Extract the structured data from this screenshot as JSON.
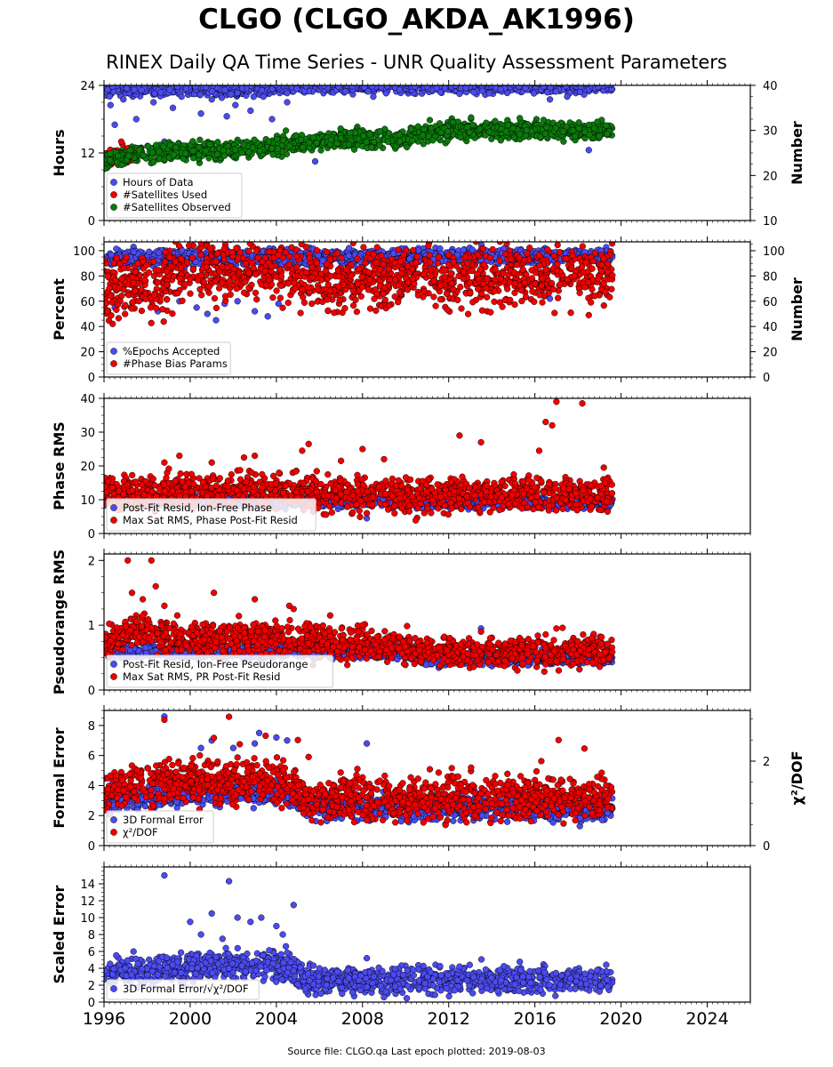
{
  "title": "CLGO (CLGO_AKDA_AK1996)",
  "subtitle": "RINEX Daily QA Time Series - UNR Quality Assessment Parameters",
  "footer": "Source file: CLGO.qa Last epoch plotted: 2019-08-03",
  "colors": {
    "blue": "#4b4bf0",
    "red": "#f00000",
    "green": "#0a7a0a",
    "edge": "#000000"
  },
  "x_axis": {
    "range": [
      1996.0,
      2026.0
    ],
    "ticks": [
      1996,
      2000,
      2004,
      2008,
      2012,
      2016,
      2020,
      2024
    ],
    "tick_labels": [
      "1996",
      "2000",
      "2004",
      "2008",
      "2012",
      "2016",
      "2020",
      "2024"
    ]
  },
  "chart_data": [
    {
      "type": "scatter",
      "ylabel": "Hours",
      "ylabel_right": "Number",
      "ylim": [
        0,
        24
      ],
      "yticks": [
        0,
        12,
        24
      ],
      "ytick_labels": [
        "0",
        "12",
        "24"
      ],
      "ylim_right": [
        10,
        40
      ],
      "yticks_right": [
        10,
        20,
        30,
        40
      ],
      "ytick_labels_right": [
        "10",
        "20",
        "30",
        "40"
      ],
      "legend_position": "lower-left",
      "series": [
        {
          "name": "Hours of Data",
          "color": "blue",
          "axis": "left",
          "trend": [
            [
              1996.0,
              23.5
            ],
            [
              1999.0,
              23.2
            ],
            [
              2003.0,
              23.5
            ],
            [
              2004.3,
              23.8
            ],
            [
              2019.6,
              23.9
            ]
          ],
          "spread": 0.6,
          "outliers": [
            [
              1996.3,
              20.5
            ],
            [
              1996.5,
              17.0
            ],
            [
              1996.9,
              21.5
            ],
            [
              1997.5,
              18.0
            ],
            [
              1998.3,
              21.0
            ],
            [
              1998.8,
              14.0
            ],
            [
              1999.2,
              20.0
            ],
            [
              1999.6,
              22.0
            ],
            [
              2000.5,
              19.0
            ],
            [
              2001.0,
              21.5
            ],
            [
              2001.7,
              18.5
            ],
            [
              2002.1,
              20.5
            ],
            [
              2002.8,
              19.5
            ],
            [
              2003.4,
              22.0
            ],
            [
              2003.8,
              18.0
            ],
            [
              2004.5,
              21.0
            ],
            [
              2005.8,
              10.5
            ],
            [
              2008.5,
              22.0
            ],
            [
              2012.5,
              22.5
            ],
            [
              2016.7,
              21.5
            ],
            [
              2017.5,
              22.0
            ],
            [
              2018.5,
              12.5
            ]
          ]
        },
        {
          "name": "#Satellites Used",
          "color": "red",
          "axis": "right",
          "trend": [
            [
              1996.0,
              24.0
            ],
            [
              1996.8,
              25.0
            ],
            [
              1997.3,
              24.5
            ]
          ],
          "spread": 0.8,
          "outliers": [
            [
              1996.8,
              27.5
            ],
            [
              1997.1,
              26.0
            ]
          ]
        },
        {
          "name": "#Satellites Observed",
          "color": "green",
          "axis": "right",
          "trend": [
            [
              1996.0,
              23.5
            ],
            [
              1998.0,
              25.0
            ],
            [
              2001.0,
              25.5
            ],
            [
              2003.0,
              25.8
            ],
            [
              2004.5,
              27.0
            ],
            [
              2006.0,
              27.8
            ],
            [
              2008.0,
              28.0
            ],
            [
              2010.0,
              28.3
            ],
            [
              2011.0,
              29.5
            ],
            [
              2013.0,
              30.0
            ],
            [
              2015.0,
              30.0
            ],
            [
              2019.6,
              30.0
            ]
          ],
          "spread": 1.0
        }
      ]
    },
    {
      "type": "scatter",
      "ylabel": "Percent",
      "ylabel_right": "Number",
      "ylim": [
        0,
        107
      ],
      "yticks": [
        0,
        20,
        40,
        60,
        80,
        100
      ],
      "ytick_labels": [
        "0",
        "20",
        "40",
        "60",
        "80",
        "100"
      ],
      "ylim_right": [
        0,
        107
      ],
      "yticks_right": [
        0,
        20,
        40,
        60,
        80,
        100
      ],
      "ytick_labels_right": [
        "0",
        "20",
        "40",
        "60",
        "80",
        "100"
      ],
      "legend_position": "lower-left",
      "series": [
        {
          "name": "%Epochs Accepted",
          "color": "blue",
          "axis": "left",
          "trend": [
            [
              1996.0,
              94.0
            ],
            [
              2005.0,
              95.0
            ],
            [
              2019.6,
              96.0
            ]
          ],
          "spread": 3.0,
          "outliers": [
            [
              1996.5,
              55.0
            ],
            [
              1997.8,
              62.0
            ],
            [
              1998.5,
              52.0
            ],
            [
              1999.5,
              60.0
            ],
            [
              2000.3,
              55.0
            ],
            [
              2000.8,
              50.0
            ],
            [
              2001.2,
              45.0
            ],
            [
              2001.6,
              58.0
            ],
            [
              2002.2,
              60.0
            ],
            [
              2003.0,
              52.0
            ],
            [
              2003.6,
              48.0
            ],
            [
              2004.1,
              58.0
            ],
            [
              2016.7,
              62.0
            ]
          ]
        },
        {
          "name": "#Phase Bias Params",
          "color": "red",
          "axis": "right",
          "trend": [
            [
              1996.0,
              72.0
            ],
            [
              1998.8,
              72.0
            ],
            [
              1999.3,
              85.0
            ],
            [
              2004.5,
              85.0
            ],
            [
              2005.5,
              78.0
            ],
            [
              2019.6,
              80.0
            ]
          ],
          "spread": 12.0,
          "outliers": [
            [
              1996.4,
              42.0
            ],
            [
              2018.5,
              49.0
            ]
          ]
        }
      ]
    },
    {
      "type": "scatter",
      "ylabel": "Phase RMS",
      "ylim": [
        0,
        40
      ],
      "yticks": [
        0,
        10,
        20,
        30,
        40
      ],
      "ytick_labels": [
        "0",
        "10",
        "20",
        "30",
        "40"
      ],
      "legend_position": "lower-left",
      "series": [
        {
          "name": "Post-Fit Resid, Ion-Free Phase",
          "color": "blue",
          "trend": [
            [
              1996.0,
              9.5
            ],
            [
              2005.0,
              9.5
            ],
            [
              2019.6,
              9.0
            ]
          ],
          "spread": 0.8,
          "outliers": [
            [
              2008.2,
              4.5
            ]
          ]
        },
        {
          "name": "Max Sat RMS, Phase Post-Fit Resid",
          "color": "red",
          "trend": [
            [
              1996.0,
              12.0
            ],
            [
              2002.0,
              13.0
            ],
            [
              2005.0,
              13.0
            ],
            [
              2006.0,
              11.5
            ],
            [
              2019.6,
              11.5
            ]
          ],
          "spread": 2.5,
          "outliers": [
            [
              1998.8,
              21.0
            ],
            [
              1999.5,
              23.0
            ],
            [
              2001.0,
              21.0
            ],
            [
              2002.5,
              22.5
            ],
            [
              2003.0,
              23.0
            ],
            [
              2005.2,
              24.5
            ],
            [
              2005.5,
              26.5
            ],
            [
              2007.0,
              21.5
            ],
            [
              2008.0,
              25.0
            ],
            [
              2008.2,
              6.0
            ],
            [
              2009.0,
              22.0
            ],
            [
              2012.5,
              29.0
            ],
            [
              2013.5,
              27.0
            ],
            [
              2016.2,
              24.5
            ],
            [
              2016.5,
              33.0
            ],
            [
              2016.8,
              32.0
            ],
            [
              2017.0,
              39.0
            ],
            [
              2018.2,
              38.5
            ],
            [
              2019.2,
              19.5
            ]
          ]
        }
      ]
    },
    {
      "type": "scatter",
      "ylabel": "Pseudorange RMS",
      "ylim": [
        0,
        2.1
      ],
      "yticks": [
        0,
        1,
        2
      ],
      "ytick_labels": [
        "0",
        "1",
        "2"
      ],
      "legend_position": "lower-left",
      "series": [
        {
          "name": "Post-Fit Resid, Ion-Free Pseudorange",
          "color": "blue",
          "trend": [
            [
              1996.0,
              0.6
            ],
            [
              2010.5,
              0.58
            ],
            [
              2010.8,
              0.48
            ],
            [
              2019.6,
              0.5
            ]
          ],
          "spread": 0.05,
          "outliers": [
            [
              2013.5,
              0.95
            ]
          ]
        },
        {
          "name": "Max Sat RMS, PR Post-Fit Resid",
          "color": "red",
          "trend": [
            [
              1996.0,
              0.7
            ],
            [
              1997.5,
              0.95
            ],
            [
              1998.5,
              0.85
            ],
            [
              1999.5,
              0.8
            ],
            [
              2004.5,
              0.8
            ],
            [
              2008.0,
              0.7
            ],
            [
              2010.5,
              0.65
            ],
            [
              2010.8,
              0.6
            ],
            [
              2019.6,
              0.6
            ]
          ],
          "spread": 0.12,
          "outliers": [
            [
              1997.1,
              2.0
            ],
            [
              1997.3,
              1.5
            ],
            [
              1997.8,
              1.4
            ],
            [
              1998.2,
              2.0
            ],
            [
              1998.4,
              1.6
            ],
            [
              1998.8,
              1.3
            ],
            [
              1999.4,
              1.15
            ],
            [
              2001.1,
              1.5
            ],
            [
              2003.0,
              1.4
            ],
            [
              2004.6,
              1.3
            ],
            [
              2004.8,
              1.25
            ],
            [
              2006.5,
              1.15
            ],
            [
              2008.0,
              1.0
            ],
            [
              2013.5,
              0.9
            ],
            [
              2017.0,
              0.95
            ]
          ]
        }
      ]
    },
    {
      "type": "scatter",
      "ylabel": "Formal Error",
      "ylabel_right": "χ²/DOF",
      "ylim": [
        0,
        9
      ],
      "yticks": [
        0,
        2,
        4,
        6,
        8
      ],
      "ytick_labels": [
        "0",
        "2",
        "4",
        "6",
        "8"
      ],
      "ylim_right": [
        0,
        3.2
      ],
      "yticks_right": [
        0,
        2
      ],
      "ytick_labels_right": [
        "0",
        "2"
      ],
      "legend_position": "lower-left",
      "series": [
        {
          "name": "3D Formal Error",
          "color": "blue",
          "axis": "left",
          "trend": [
            [
              1996.0,
              3.0
            ],
            [
              2000.0,
              3.5
            ],
            [
              2004.5,
              3.5
            ],
            [
              2005.5,
              2.6
            ],
            [
              2019.6,
              2.5
            ]
          ],
          "spread": 0.4,
          "outliers": [
            [
              1998.8,
              8.6
            ],
            [
              2000.5,
              6.5
            ],
            [
              2001.0,
              7.0
            ],
            [
              2002.0,
              6.5
            ],
            [
              2003.0,
              6.8
            ],
            [
              2003.2,
              7.5
            ],
            [
              2004.0,
              7.2
            ],
            [
              2004.5,
              7.0
            ],
            [
              2008.2,
              6.8
            ]
          ]
        },
        {
          "name": "χ²/DOF",
          "color": "red",
          "axis": "right",
          "trend": [
            [
              1996.0,
              1.35
            ],
            [
              1999.0,
              1.5
            ],
            [
              2004.5,
              1.55
            ],
            [
              2005.5,
              1.1
            ],
            [
              2019.6,
              1.15
            ]
          ],
          "spread": 0.25,
          "outliers": [
            [
              1998.8,
              2.98
            ],
            [
              2001.1,
              2.55
            ],
            [
              2001.8,
              3.05
            ],
            [
              2002.3,
              2.4
            ],
            [
              2003.5,
              2.6
            ],
            [
              2005.0,
              2.5
            ],
            [
              2005.5,
              2.1
            ],
            [
              2008.2,
              0.6
            ],
            [
              2016.3,
              2.0
            ],
            [
              2017.1,
              2.5
            ],
            [
              2018.3,
              2.3
            ]
          ]
        }
      ]
    },
    {
      "type": "scatter",
      "ylabel": "Scaled Error",
      "ylim": [
        0,
        16
      ],
      "yticks": [
        0,
        2,
        4,
        6,
        8,
        10,
        12,
        14
      ],
      "ytick_labels": [
        "0",
        "2",
        "4",
        "6",
        "8",
        "10",
        "12",
        "14"
      ],
      "legend_position": "lower-left",
      "series": [
        {
          "name": "3D Formal Error/√χ²/DOF",
          "color": "blue",
          "trend": [
            [
              1996.0,
              3.5
            ],
            [
              1999.0,
              3.8
            ],
            [
              2001.0,
              4.5
            ],
            [
              2004.5,
              4.2
            ],
            [
              2005.5,
              2.6
            ],
            [
              2019.6,
              2.6
            ]
          ],
          "spread": 0.8,
          "outliers": [
            [
              1998.8,
              15.0
            ],
            [
              2000.0,
              9.5
            ],
            [
              2000.5,
              8.0
            ],
            [
              2001.0,
              10.5
            ],
            [
              2001.5,
              7.5
            ],
            [
              2001.8,
              14.3
            ],
            [
              2002.2,
              10.0
            ],
            [
              2002.8,
              9.5
            ],
            [
              2003.3,
              10.0
            ],
            [
              2004.0,
              9.0
            ],
            [
              2004.3,
              8.0
            ],
            [
              2004.8,
              11.5
            ],
            [
              2006.0,
              4.0
            ],
            [
              2008.2,
              5.2
            ],
            [
              2012.5,
              4.2
            ]
          ]
        }
      ]
    }
  ]
}
